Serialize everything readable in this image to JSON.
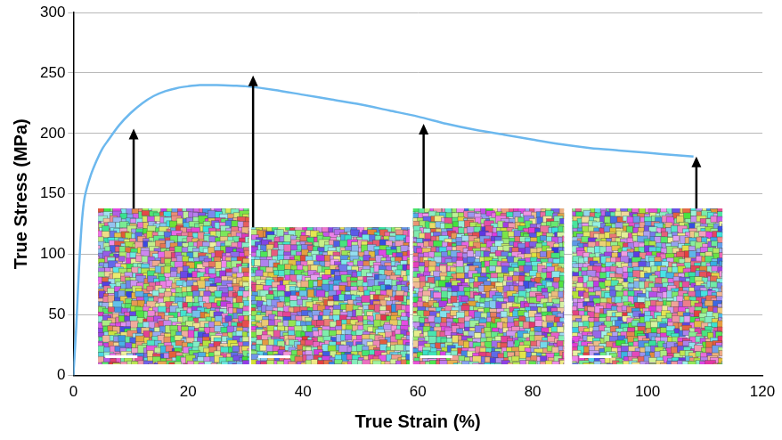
{
  "chart_data": {
    "type": "line",
    "x_label": "True Strain (%)",
    "y_label": "True Stress (MPa)",
    "x": [
      0,
      0.5,
      1,
      1.5,
      2,
      3,
      4,
      5,
      6,
      8,
      10,
      12,
      14,
      16,
      18,
      20,
      22,
      25,
      28,
      30,
      35,
      40,
      45,
      50,
      55,
      60,
      65,
      70,
      75,
      80,
      85,
      90,
      95,
      100,
      105,
      108
    ],
    "values": [
      0,
      40,
      90,
      128,
      148,
      165,
      177,
      187,
      194,
      207,
      217,
      225,
      231,
      235,
      237.5,
      239,
      240,
      240,
      239.5,
      239,
      236,
      232,
      228,
      224,
      219,
      214,
      208,
      203,
      199,
      195,
      191,
      188,
      186,
      184,
      182,
      181
    ],
    "color": "#6cb8ee",
    "xlim": [
      0,
      120
    ],
    "xticks": [
      0,
      20,
      40,
      60,
      80,
      100,
      120
    ],
    "ylim": [
      0,
      300
    ],
    "yticks": [
      0,
      50,
      100,
      150,
      200,
      250,
      300
    ],
    "grid": true,
    "arrows": [
      {
        "x": 10.5,
        "y": 204
      },
      {
        "x": 31.3,
        "y": 248
      },
      {
        "x": 61,
        "y": 208
      },
      {
        "x": 108.5,
        "y": 181
      }
    ]
  }
}
